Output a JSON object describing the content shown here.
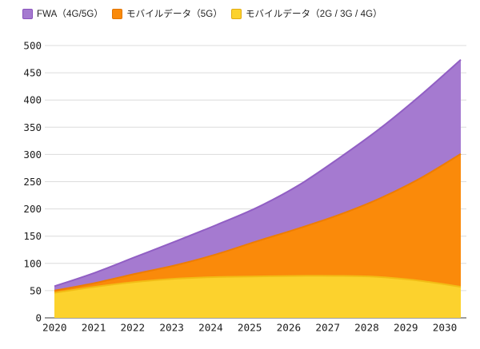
{
  "chart_data": {
    "type": "area",
    "stacked": true,
    "title": "",
    "xlabel": "",
    "ylabel": "",
    "x_labels": [
      "2020",
      "2021",
      "2022",
      "2023",
      "2024",
      "2025",
      "2026",
      "2027",
      "2028",
      "2029",
      "2030"
    ],
    "y_ticks": [
      "0",
      "50",
      "100",
      "150",
      "200",
      "250",
      "300",
      "350",
      "400",
      "450",
      "500"
    ],
    "ylim": [
      0,
      500
    ],
    "ytick_step": 50,
    "grid": true,
    "legend_position": "top-left",
    "series": [
      {
        "name": "モバイルデータ（2G / 3G / 4G）",
        "color": "#fcd22d",
        "edge": "#f2bc15",
        "values": [
          46,
          57,
          66,
          72,
          75,
          76,
          77,
          77,
          75,
          68,
          57
        ]
      },
      {
        "name": "モバイルデータ（5G）",
        "color": "#fa8a0a",
        "edge": "#ee7d00",
        "values": [
          4,
          7,
          15,
          25,
          42,
          65,
          87,
          112,
          144,
          188,
          244
        ]
      },
      {
        "name": "FWA（4G/5G）",
        "color": "#a57ad0",
        "edge": "#915fc4",
        "values": [
          8,
          19,
          31,
          44,
          54,
          62,
          79,
          104,
          128,
          152,
          173
        ]
      }
    ],
    "cumulative_tops": {
      "mobile_2g3g4g": [
        46,
        57,
        66,
        72,
        75,
        76,
        77,
        77,
        75,
        68,
        57
      ],
      "mobile_5g_top": [
        50,
        64,
        81,
        97,
        117,
        141,
        164,
        189,
        219,
        256,
        301
      ],
      "total_top": [
        58,
        83,
        112,
        141,
        171,
        203,
        243,
        293,
        347,
        408,
        474
      ]
    }
  },
  "legend_order": [
    2,
    1,
    0
  ],
  "colors": {
    "grid_line": "#dcdcdc",
    "zero_line": "#9e9e9e",
    "tick_text": "#1c1c1c",
    "background": "#ffffff",
    "legend_border_purple": "#8a52bd",
    "legend_border_orange": "#e07504",
    "legend_border_yellow": "#e2ab12"
  }
}
